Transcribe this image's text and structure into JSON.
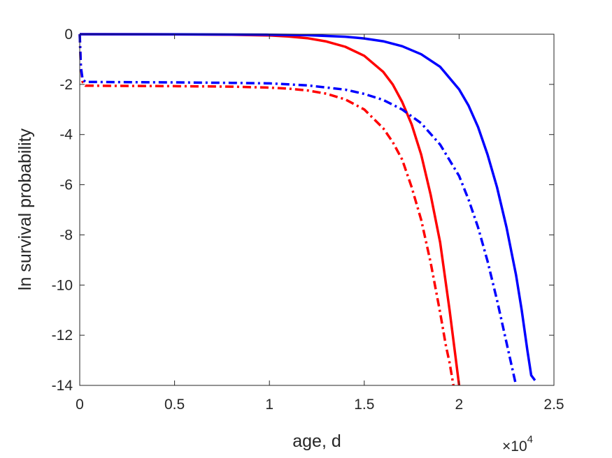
{
  "chart_data": {
    "type": "line",
    "xlabel": "age, d",
    "ylabel": "ln survival probability",
    "xlim": [
      0,
      25000
    ],
    "ylim": [
      -14,
      0
    ],
    "x_exponent_label": {
      "base": "×10",
      "exp": "4"
    },
    "x_ticks": [
      {
        "value": 0,
        "label": "0"
      },
      {
        "value": 5000,
        "label": "0.5"
      },
      {
        "value": 10000,
        "label": "1"
      },
      {
        "value": 15000,
        "label": "1.5"
      },
      {
        "value": 20000,
        "label": "2"
      },
      {
        "value": 25000,
        "label": "2.5"
      }
    ],
    "y_ticks": [
      {
        "value": 0,
        "label": "0"
      },
      {
        "value": -2,
        "label": "-2"
      },
      {
        "value": -4,
        "label": "-4"
      },
      {
        "value": -6,
        "label": "-6"
      },
      {
        "value": -8,
        "label": "-8"
      },
      {
        "value": -10,
        "label": "-10"
      },
      {
        "value": -12,
        "label": "-12"
      },
      {
        "value": -14,
        "label": "-14"
      }
    ],
    "grid": false,
    "box": true,
    "series": [
      {
        "color": "#ff0000",
        "style": "solid",
        "x": [
          0,
          4000,
          8000,
          10000,
          11000,
          12000,
          13000,
          14000,
          15000,
          16000,
          16500,
          17000,
          17500,
          18000,
          18500,
          19000,
          19500,
          19800,
          20000
        ],
        "y": [
          0,
          -0.003,
          -0.02,
          -0.05,
          -0.09,
          -0.16,
          -0.29,
          -0.5,
          -0.86,
          -1.5,
          -2.0,
          -2.7,
          -3.6,
          -4.8,
          -6.4,
          -8.3,
          -11.0,
          -12.8,
          -14
        ]
      },
      {
        "color": "#ff0000",
        "style": "dashdot",
        "x": [
          0,
          60,
          150,
          300,
          2000,
          5000,
          8000,
          10000,
          11000,
          12000,
          13000,
          14000,
          15000,
          16000,
          16500,
          17000,
          17500,
          18000,
          18500,
          19000,
          19300,
          19500,
          19700
        ],
        "y": [
          0,
          -1.3,
          -1.9,
          -2.05,
          -2.06,
          -2.07,
          -2.09,
          -2.13,
          -2.17,
          -2.24,
          -2.37,
          -2.6,
          -3.0,
          -3.75,
          -4.3,
          -5.0,
          -6.1,
          -7.4,
          -9.1,
          -11.1,
          -12.4,
          -13.1,
          -14
        ]
      },
      {
        "color": "#0000ff",
        "style": "solid",
        "x": [
          0,
          5000,
          10000,
          12000,
          14000,
          15000,
          16000,
          17000,
          18000,
          19000,
          20000,
          20500,
          21000,
          21500,
          22000,
          22500,
          23000,
          23300,
          23600,
          23800,
          24000
        ],
        "y": [
          0,
          -0.002,
          -0.02,
          -0.04,
          -0.1,
          -0.17,
          -0.28,
          -0.48,
          -0.8,
          -1.3,
          -2.2,
          -2.85,
          -3.7,
          -4.8,
          -6.1,
          -7.7,
          -9.6,
          -11.0,
          -12.6,
          -13.6,
          -13.8
        ]
      },
      {
        "color": "#0000ff",
        "style": "dashdot",
        "x": [
          0,
          60,
          150,
          300,
          2000,
          5000,
          8000,
          10000,
          12000,
          14000,
          15000,
          16000,
          17000,
          18000,
          19000,
          20000,
          20500,
          21000,
          21500,
          22000,
          22500,
          23000
        ],
        "y": [
          0,
          -1.3,
          -1.8,
          -1.9,
          -1.91,
          -1.92,
          -1.94,
          -1.96,
          -2.04,
          -2.21,
          -2.38,
          -2.62,
          -3.0,
          -3.55,
          -4.4,
          -5.65,
          -6.6,
          -7.7,
          -9.05,
          -10.6,
          -12.3,
          -14
        ]
      }
    ]
  }
}
